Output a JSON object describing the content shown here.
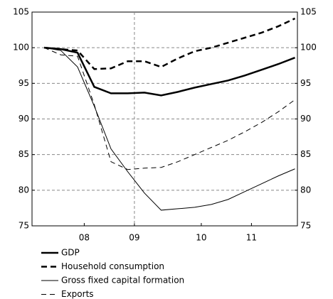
{
  "chart_data": {
    "type": "line",
    "categories": [
      null,
      null,
      "08",
      null,
      null,
      "09",
      null,
      null,
      null,
      "10",
      null,
      null,
      "11",
      null,
      null,
      null
    ],
    "series": [
      {
        "name": "GDP",
        "color": "#000000",
        "style": "solid-thick",
        "values": [
          100,
          99.8,
          99.3,
          94.5,
          93.6,
          93.6,
          93.7,
          93.3,
          93.8,
          94.4,
          94.9,
          95.4,
          96.1,
          96.9,
          97.7,
          98.6
        ]
      },
      {
        "name": "Household consumption",
        "color": "#000000",
        "style": "dashed-thick",
        "values": [
          100,
          99.8,
          99.6,
          97.0,
          97.1,
          98.1,
          98.1,
          97.3,
          98.5,
          99.5,
          100.0,
          100.7,
          101.4,
          102.1,
          103.0,
          104.1
        ]
      },
      {
        "name": "Gross fixed capital formation",
        "color": "#000000",
        "style": "solid-thin",
        "values": [
          100,
          99.6,
          97.3,
          91.8,
          85.8,
          82.6,
          79.6,
          77.2,
          77.4,
          77.6,
          78.0,
          78.7,
          79.8,
          80.9,
          82.0,
          83.0
        ]
      },
      {
        "name": "Exports",
        "color": "#000000",
        "style": "dashed-thin",
        "values": [
          100,
          99.0,
          98.8,
          92.0,
          84.0,
          82.9,
          83.1,
          83.2,
          84.0,
          85.0,
          86.0,
          87.0,
          88.2,
          89.5,
          91.0,
          92.7
        ]
      }
    ],
    "ylim": [
      75,
      105
    ],
    "yticks": [
      75,
      80,
      85,
      90,
      95,
      100,
      105
    ],
    "y2lim": [
      75,
      105
    ],
    "y2ticks": [
      75,
      80,
      85,
      90,
      95,
      100,
      105
    ],
    "grid": true
  }
}
